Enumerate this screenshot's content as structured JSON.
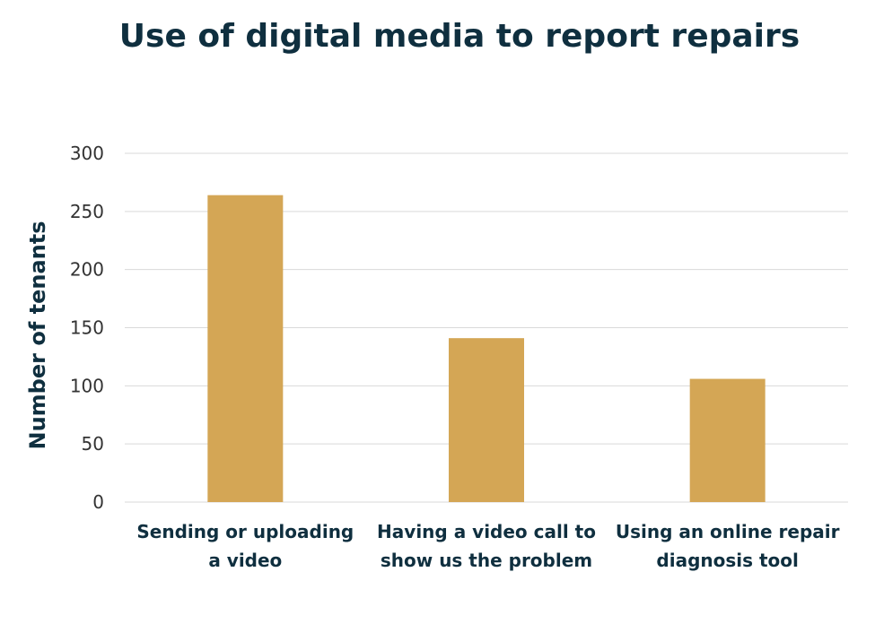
{
  "chart_data": {
    "type": "bar",
    "title": "Use of digital media to report repairs",
    "xlabel": "",
    "ylabel": "Number of tenants",
    "categories": [
      [
        "Sending or uploading",
        "a video"
      ],
      [
        "Having a video call to",
        "show us the problem"
      ],
      [
        "Using an online repair",
        "diagnosis tool"
      ]
    ],
    "values": [
      264,
      141,
      106
    ],
    "ylim": [
      0,
      300
    ],
    "yticks": [
      0,
      50,
      100,
      150,
      200,
      250,
      300
    ],
    "grid": true,
    "legend": "none",
    "bar_color": "#d4a655"
  }
}
